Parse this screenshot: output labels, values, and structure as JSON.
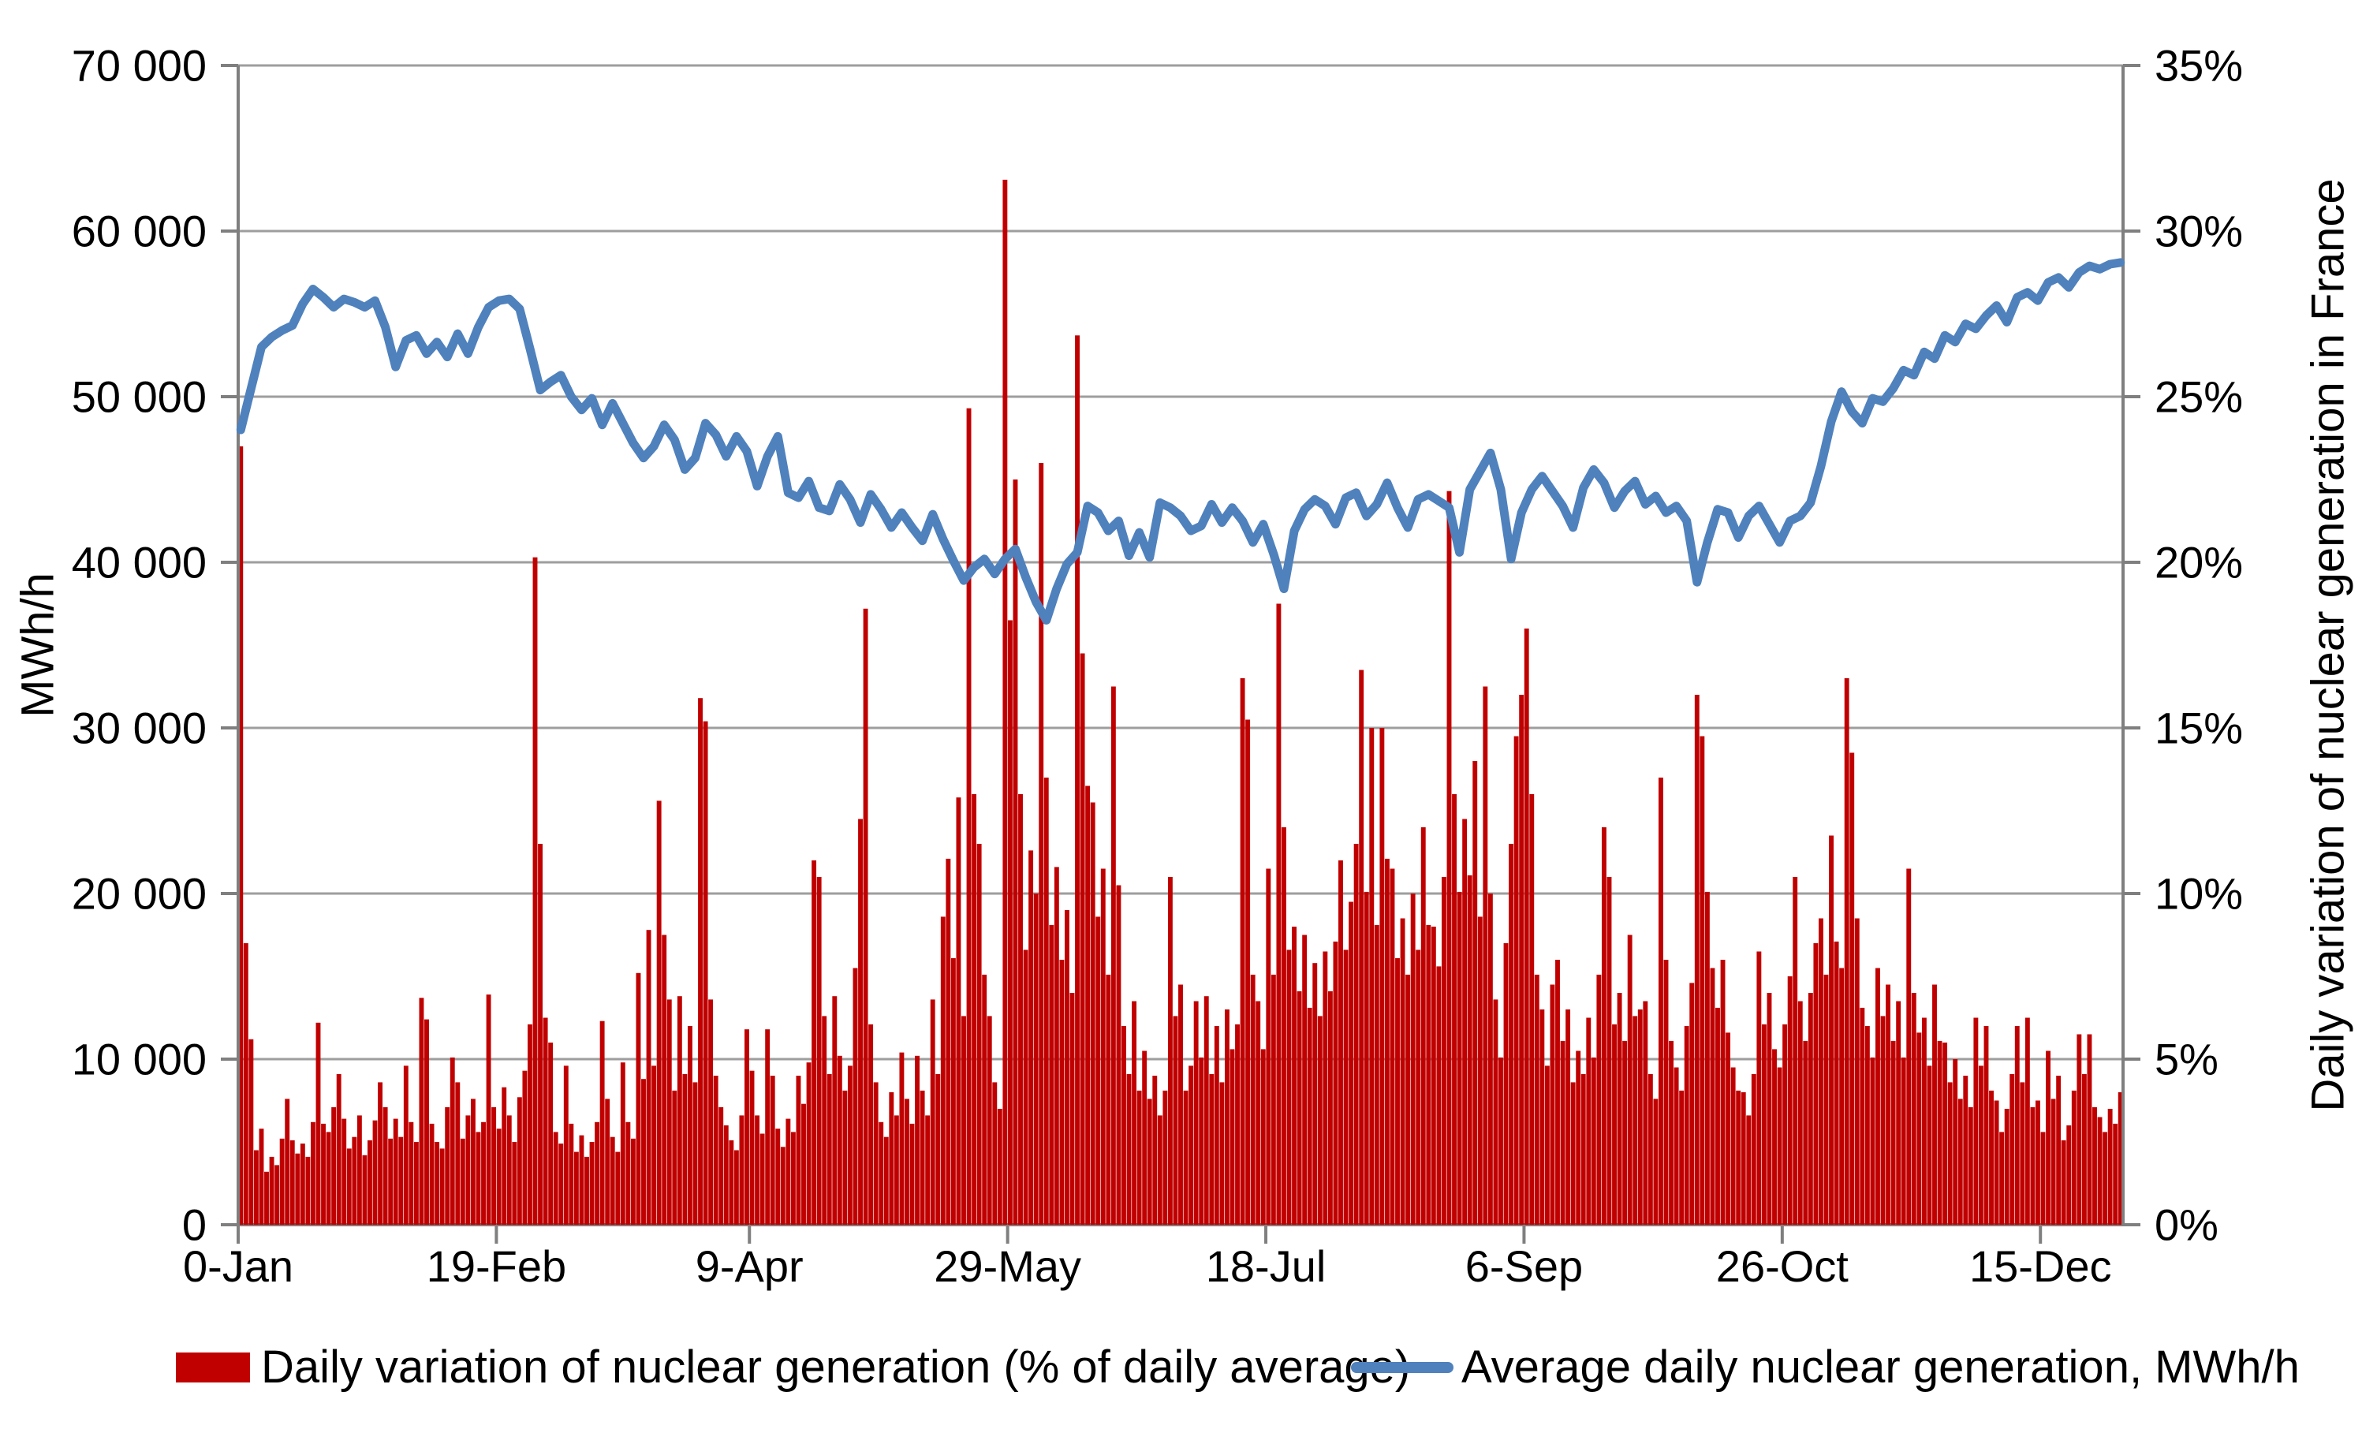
{
  "figure": {
    "background": "#ffffff"
  },
  "colors": {
    "bar": "#C00000",
    "line": "#4F81BD",
    "grid": "#9E9E9E",
    "axis": "#7F7F7F",
    "text": "#000000"
  },
  "left_axis": {
    "title": "MWh/h",
    "tick_labels": [
      "70 000",
      "60 000",
      "50 000",
      "40 000",
      "30 000",
      "20 000",
      "10 000",
      "0"
    ],
    "min": 0,
    "max": 70000,
    "step": 10000
  },
  "right_axis": {
    "title": "Daily variation of nuclear generation in France",
    "tick_labels": [
      "35%",
      "30%",
      "25%",
      "20%",
      "15%",
      "10%",
      "5%",
      "0%"
    ],
    "min": 0,
    "max": 35,
    "step": 5
  },
  "x_axis": {
    "tick_labels": [
      "0-Jan",
      "19-Feb",
      "9-Apr",
      "29-May",
      "18-Jul",
      "6-Sep",
      "26-Oct",
      "15-Dec"
    ],
    "tick_days": [
      0,
      50,
      99,
      149,
      199,
      249,
      299,
      349
    ],
    "days_total": 365
  },
  "legend": [
    {
      "label": "Daily variation of nuclear generation (% of daily average)",
      "color": "#C00000",
      "type": "bar"
    },
    {
      "label": "Average daily nuclear generation, MWh/h",
      "color": "#4F81BD",
      "type": "line"
    }
  ],
  "chart_data": {
    "type": "combo",
    "title": "",
    "xlabel": "",
    "grid": "horizontal",
    "legend_position": "bottom",
    "bar_series": {
      "name": "Daily variation of nuclear generation (% of daily average)",
      "axis": "right",
      "unit": "%",
      "x_unit": "day-of-year (1-365)",
      "values": [
        23.5,
        8.5,
        5.6,
        2.25,
        2.9,
        1.6,
        2.05,
        1.8,
        2.6,
        3.8,
        2.55,
        2.15,
        2.45,
        2.05,
        3.1,
        6.1,
        3.05,
        2.8,
        3.55,
        4.55,
        3.2,
        2.3,
        2.65,
        3.3,
        2.1,
        2.55,
        3.15,
        4.3,
        3.55,
        2.6,
        3.2,
        2.65,
        4.8,
        3.1,
        2.5,
        6.85,
        6.2,
        3.05,
        2.5,
        2.3,
        3.55,
        5.05,
        4.3,
        2.6,
        3.3,
        3.8,
        2.8,
        3.1,
        6.95,
        3.55,
        2.9,
        4.15,
        3.3,
        2.5,
        3.85,
        4.65,
        6.05,
        20.15,
        11.5,
        6.25,
        5.5,
        2.8,
        2.45,
        4.8,
        3.05,
        2.2,
        2.7,
        2.05,
        2.5,
        3.1,
        6.15,
        3.8,
        2.65,
        2.2,
        4.9,
        3.1,
        2.6,
        7.6,
        4.4,
        8.9,
        4.8,
        12.8,
        8.75,
        6.8,
        4.05,
        6.9,
        4.55,
        6.0,
        4.3,
        15.9,
        15.2,
        6.8,
        4.5,
        3.55,
        3.0,
        2.55,
        2.25,
        3.3,
        5.9,
        4.65,
        3.3,
        2.75,
        5.9,
        4.5,
        2.9,
        2.35,
        3.2,
        2.8,
        4.5,
        3.65,
        4.9,
        11.0,
        10.5,
        6.3,
        4.55,
        6.9,
        5.1,
        4.05,
        4.8,
        7.75,
        12.25,
        18.6,
        6.05,
        4.3,
        3.1,
        2.65,
        4.0,
        3.3,
        5.2,
        3.8,
        3.05,
        5.1,
        4.05,
        3.3,
        6.8,
        4.55,
        9.3,
        11.05,
        8.05,
        12.9,
        6.3,
        24.65,
        13.0,
        11.5,
        7.55,
        6.3,
        4.3,
        3.5,
        31.55,
        18.25,
        22.5,
        13.0,
        8.3,
        11.3,
        10.0,
        23.0,
        13.5,
        9.05,
        10.8,
        8.0,
        9.5,
        7.0,
        26.85,
        17.25,
        13.25,
        12.75,
        9.3,
        10.75,
        7.55,
        16.25,
        10.25,
        6.0,
        4.55,
        6.75,
        4.05,
        5.25,
        3.8,
        4.5,
        3.3,
        4.05,
        10.5,
        6.3,
        7.25,
        4.05,
        4.8,
        6.75,
        5.05,
        6.9,
        4.55,
        6.0,
        4.3,
        6.5,
        5.3,
        6.05,
        16.5,
        15.25,
        7.55,
        6.75,
        5.3,
        10.75,
        7.55,
        18.75,
        12.0,
        8.3,
        9.0,
        7.05,
        8.75,
        6.55,
        7.9,
        6.3,
        8.25,
        7.05,
        8.55,
        11.0,
        8.3,
        9.75,
        11.5,
        16.75,
        10.05,
        15.0,
        9.05,
        15.0,
        11.05,
        10.75,
        8.05,
        9.25,
        7.55,
        10.0,
        8.3,
        12.0,
        9.05,
        9.0,
        7.8,
        10.5,
        22.15,
        13.0,
        10.05,
        12.25,
        10.55,
        14.0,
        9.3,
        16.25,
        10.0,
        6.8,
        5.05,
        8.5,
        11.5,
        14.75,
        16.0,
        18.0,
        13.0,
        7.55,
        6.5,
        4.8,
        7.25,
        8.0,
        5.55,
        6.5,
        4.3,
        5.25,
        4.55,
        6.25,
        5.05,
        7.55,
        12.0,
        10.5,
        6.05,
        7.0,
        5.55,
        8.75,
        6.3,
        6.5,
        6.75,
        4.55,
        3.8,
        13.5,
        8.0,
        5.55,
        4.75,
        4.05,
        6.0,
        7.3,
        16.0,
        14.75,
        10.05,
        7.75,
        6.55,
        8.0,
        5.8,
        4.75,
        4.05,
        4.0,
        3.3,
        4.55,
        8.25,
        6.05,
        7.0,
        5.3,
        4.75,
        6.05,
        7.5,
        10.5,
        6.75,
        5.55,
        7.0,
        8.5,
        9.25,
        7.55,
        11.75,
        8.55,
        7.75,
        16.5,
        14.25,
        9.25,
        6.55,
        6.0,
        5.05,
        7.75,
        6.3,
        7.25,
        5.55,
        6.75,
        5.05,
        10.75,
        7.0,
        5.8,
        6.25,
        4.8,
        7.25,
        5.55,
        5.5,
        4.3,
        5.0,
        3.8,
        4.5,
        3.55,
        6.25,
        4.8,
        6.0,
        4.05,
        3.75,
        2.8,
        3.5,
        4.55,
        6.0,
        4.3,
        6.25,
        3.55,
        3.75,
        2.8,
        5.25,
        3.8,
        4.5,
        2.55,
        3.0,
        4.05,
        5.75,
        4.55,
        5.75,
        3.55,
        3.25,
        2.8,
        3.5,
        3.05,
        4.0
      ]
    },
    "line_series": {
      "name": "Average daily nuclear generation, MWh/h",
      "axis": "left",
      "unit": "MWh/h",
      "days": "odd days 1,3,5,...,365",
      "day_start": 1,
      "day_step": 2,
      "values": [
        48000,
        50500,
        53000,
        53600,
        54000,
        54300,
        55600,
        56500,
        56000,
        55400,
        55900,
        55700,
        55400,
        55800,
        54200,
        51800,
        53400,
        53700,
        52600,
        53300,
        52400,
        53800,
        52600,
        54200,
        55400,
        55800,
        55900,
        55300,
        52900,
        50400,
        50900,
        51300,
        50000,
        49200,
        49900,
        48300,
        49600,
        48400,
        47200,
        46300,
        47000,
        48300,
        47400,
        45600,
        46300,
        48400,
        47700,
        46400,
        47600,
        46700,
        44600,
        46400,
        47600,
        44200,
        43900,
        44900,
        43300,
        43100,
        44700,
        43800,
        42400,
        44100,
        43200,
        42100,
        43000,
        42100,
        41300,
        42900,
        41400,
        40100,
        38900,
        39700,
        40200,
        39300,
        40200,
        40800,
        39100,
        37600,
        36500,
        38400,
        39900,
        40600,
        43400,
        43000,
        41900,
        42500,
        40400,
        41800,
        40300,
        43600,
        43300,
        42800,
        41900,
        42200,
        43500,
        42400,
        43300,
        42500,
        41200,
        42300,
        40500,
        38400,
        41900,
        43200,
        43800,
        43400,
        42300,
        43900,
        44200,
        42800,
        43500,
        44800,
        43300,
        42100,
        43800,
        44100,
        43700,
        43300,
        40600,
        44400,
        45500,
        46600,
        44400,
        40200,
        43000,
        44400,
        45200,
        44300,
        43400,
        42100,
        44500,
        45600,
        44800,
        43300,
        44300,
        44900,
        43500,
        44000,
        43000,
        43400,
        42500,
        38800,
        41200,
        43200,
        43000,
        41500,
        42800,
        43400,
        42300,
        41200,
        42500,
        42800,
        43600,
        45800,
        48500,
        50300,
        49100,
        48400,
        49900,
        49700,
        50500,
        51600,
        51300,
        52700,
        52300,
        53700,
        53300,
        54400,
        54100,
        54900,
        55500,
        54500,
        56000,
        56300,
        55800,
        56900,
        57200,
        56600,
        57500,
        57900,
        57700,
        58000,
        58100
      ]
    }
  }
}
